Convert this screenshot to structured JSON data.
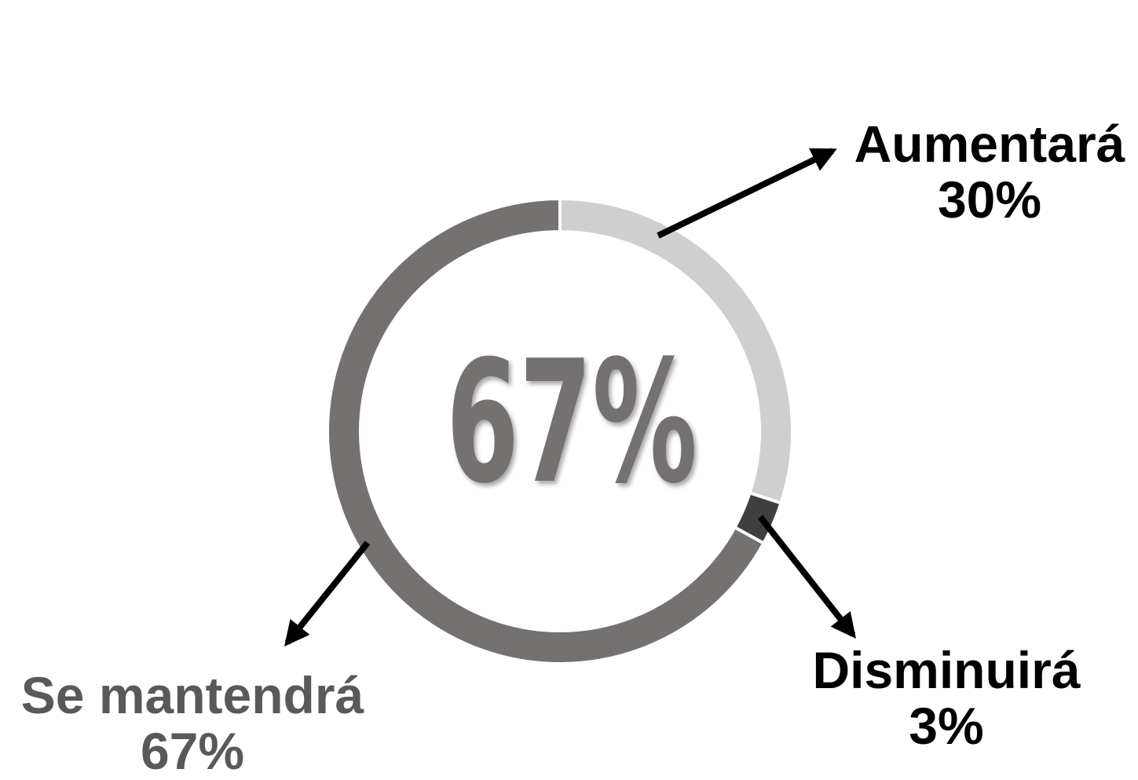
{
  "chart_data": {
    "type": "pie",
    "variant": "donut",
    "center_label": "67%",
    "series": [
      {
        "name": "Aumentará",
        "value": 30,
        "value_label": "30%",
        "color": "#d0cfd0"
      },
      {
        "name": "Disminuirá",
        "value": 3,
        "value_label": "3%",
        "color": "#3f3f3f"
      },
      {
        "name": "Se mantendrá",
        "value": 67,
        "value_label": "67%",
        "color": "#757171"
      }
    ],
    "label_colors": {
      "Aumentará": "#000000",
      "Disminuirá": "#000000",
      "Se mantendrá": "#595959"
    },
    "center_label_color": "#757171",
    "start_angle": "top",
    "direction": "clockwise"
  }
}
